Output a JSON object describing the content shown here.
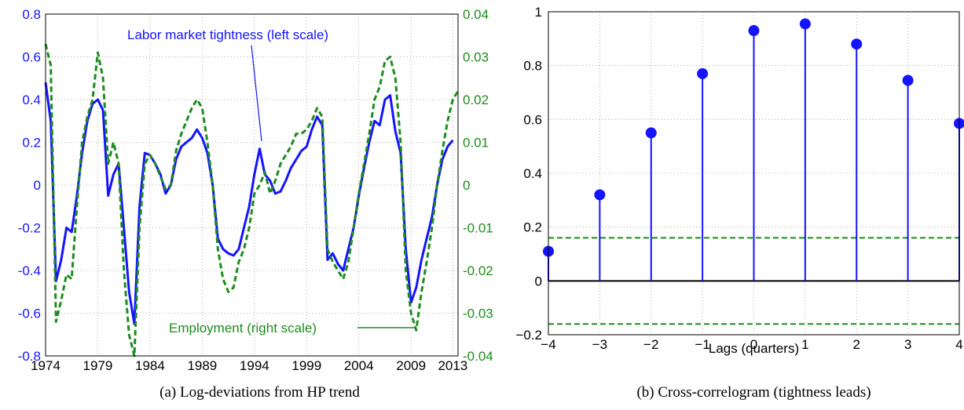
{
  "colors": {
    "tightness": "#1414ff",
    "employment": "#1e8c1e",
    "axis": "#000000",
    "grid": "#9a9a9a"
  },
  "chart_data": [
    {
      "type": "line",
      "caption": "(a)  Log-deviations from HP trend",
      "xlim": [
        1974,
        2013.5
      ],
      "x_ticks": [
        "1974",
        "1979",
        "1984",
        "1989",
        "1994",
        "1999",
        "2004",
        "2009",
        "2013"
      ],
      "y_left": {
        "lim": [
          -0.8,
          0.8
        ],
        "ticks": [
          "0.8",
          "0.6",
          "0.4",
          "0.2",
          "0",
          "-0.2",
          "-0.4",
          "-0.6",
          "-0.8"
        ]
      },
      "y_right": {
        "lim": [
          -0.04,
          0.04
        ],
        "ticks": [
          "0.04",
          "0.03",
          "0.02",
          "0.01",
          "0",
          "-0.01",
          "-0.02",
          "-0.03",
          "-0.04"
        ]
      },
      "grid": true,
      "annotations": [
        {
          "text": "Labor market tightness (left scale)",
          "series": "tightness"
        },
        {
          "text": "Employment (right scale)",
          "series": "employment"
        }
      ],
      "series": [
        {
          "name": "Labor market tightness",
          "axis": "left",
          "style": "solid",
          "x": [
            1974,
            1974.5,
            1975,
            1975.5,
            1976,
            1976.5,
            1977,
            1977.5,
            1978,
            1978.5,
            1979,
            1979.5,
            1980,
            1980.5,
            1981,
            1981.5,
            1982,
            1982.5,
            1983,
            1983.5,
            1984,
            1984.5,
            1985,
            1985.5,
            1986,
            1986.5,
            1987,
            1987.5,
            1988,
            1988.5,
            1989,
            1989.5,
            1990,
            1990.5,
            1991,
            1991.5,
            1992,
            1992.5,
            1993,
            1993.5,
            1994,
            1994.5,
            1995,
            1995.5,
            1996,
            1996.5,
            1997,
            1997.5,
            1998,
            1998.5,
            1999,
            1999.5,
            2000,
            2000.5,
            2001,
            2001.5,
            2002,
            2002.5,
            2003,
            2003.5,
            2004,
            2004.5,
            2005,
            2005.5,
            2006,
            2006.5,
            2007,
            2007.5,
            2008,
            2008.5,
            2009,
            2009.5,
            2010,
            2010.5,
            2011,
            2011.5,
            2012,
            2012.5,
            2013
          ],
          "y": [
            0.48,
            0.3,
            -0.45,
            -0.35,
            -0.2,
            -0.22,
            -0.05,
            0.15,
            0.3,
            0.38,
            0.4,
            0.35,
            -0.05,
            0.05,
            0.1,
            -0.2,
            -0.5,
            -0.65,
            -0.1,
            0.15,
            0.14,
            0.1,
            0.05,
            -0.04,
            0.0,
            0.12,
            0.18,
            0.2,
            0.22,
            0.26,
            0.22,
            0.15,
            0.0,
            -0.25,
            -0.3,
            -0.32,
            -0.33,
            -0.3,
            -0.2,
            -0.1,
            0.05,
            0.17,
            0.05,
            0.02,
            -0.04,
            -0.03,
            0.02,
            0.08,
            0.12,
            0.16,
            0.18,
            0.26,
            0.32,
            0.28,
            -0.35,
            -0.32,
            -0.37,
            -0.4,
            -0.3,
            -0.2,
            -0.05,
            0.08,
            0.2,
            0.3,
            0.28,
            0.4,
            0.42,
            0.25,
            0.15,
            -0.3,
            -0.55,
            -0.48,
            -0.35,
            -0.25,
            -0.15,
            0.0,
            0.12,
            0.18,
            0.21
          ]
        },
        {
          "name": "Employment",
          "axis": "right",
          "style": "dashed",
          "x": [
            1974,
            1974.5,
            1975,
            1975.5,
            1976,
            1976.5,
            1977,
            1977.5,
            1978,
            1978.5,
            1979,
            1979.5,
            1980,
            1980.5,
            1981,
            1981.5,
            1982,
            1982.5,
            1983,
            1983.5,
            1984,
            1984.5,
            1985,
            1985.5,
            1986,
            1986.5,
            1987,
            1987.5,
            1988,
            1988.5,
            1989,
            1989.5,
            1990,
            1990.5,
            1991,
            1991.5,
            1992,
            1992.5,
            1993,
            1993.5,
            1994,
            1994.5,
            1995,
            1995.5,
            1996,
            1996.5,
            1997,
            1997.5,
            1998,
            1998.5,
            1999,
            1999.5,
            2000,
            2000.5,
            2001,
            2001.5,
            2002,
            2002.5,
            2003,
            2003.5,
            2004,
            2004.5,
            2005,
            2005.5,
            2006,
            2006.5,
            2007,
            2007.5,
            2008,
            2008.5,
            2009,
            2009.5,
            2010,
            2010.5,
            2011,
            2011.5,
            2012,
            2012.5,
            2013,
            2013.5
          ],
          "y": [
            0.033,
            0.028,
            -0.032,
            -0.027,
            -0.021,
            -0.022,
            -0.005,
            0.01,
            0.016,
            0.02,
            0.031,
            0.025,
            0.005,
            0.01,
            0.005,
            -0.02,
            -0.035,
            -0.04,
            -0.01,
            0.005,
            0.007,
            0.005,
            0.002,
            -0.001,
            0.0,
            0.008,
            0.012,
            0.015,
            0.018,
            0.02,
            0.018,
            0.01,
            0.0,
            -0.015,
            -0.022,
            -0.025,
            -0.024,
            -0.018,
            -0.015,
            -0.01,
            -0.002,
            0.0,
            0.003,
            -0.002,
            0.001,
            0.005,
            0.007,
            0.009,
            0.012,
            0.012,
            0.013,
            0.015,
            0.018,
            0.016,
            -0.015,
            -0.018,
            -0.02,
            -0.022,
            -0.018,
            -0.01,
            -0.002,
            0.005,
            0.012,
            0.02,
            0.023,
            0.029,
            0.03,
            0.025,
            0.01,
            -0.02,
            -0.03,
            -0.034,
            -0.025,
            -0.018,
            -0.01,
            0.0,
            0.008,
            0.015,
            0.02,
            0.022
          ]
        }
      ]
    },
    {
      "type": "stem",
      "caption": "(b)  Cross-correlogram (tightness leads)",
      "xlabel": "Lags (quarters)",
      "xlim": [
        -4,
        4
      ],
      "ylim": [
        -0.2,
        1
      ],
      "x_ticks": [
        "−4",
        "−3",
        "−2",
        "−1",
        "0",
        "1",
        "2",
        "3",
        "4"
      ],
      "y_ticks": [
        "1",
        "0.8",
        "0.6",
        "0.4",
        "0.2",
        "0",
        "−0.2"
      ],
      "grid": true,
      "confidence_band": [
        0.16,
        -0.16
      ],
      "x": [
        -4,
        -3,
        -2,
        -1,
        0,
        1,
        2,
        3,
        4
      ],
      "y": [
        0.11,
        0.32,
        0.55,
        0.77,
        0.93,
        0.955,
        0.88,
        0.745,
        0.585
      ]
    }
  ]
}
